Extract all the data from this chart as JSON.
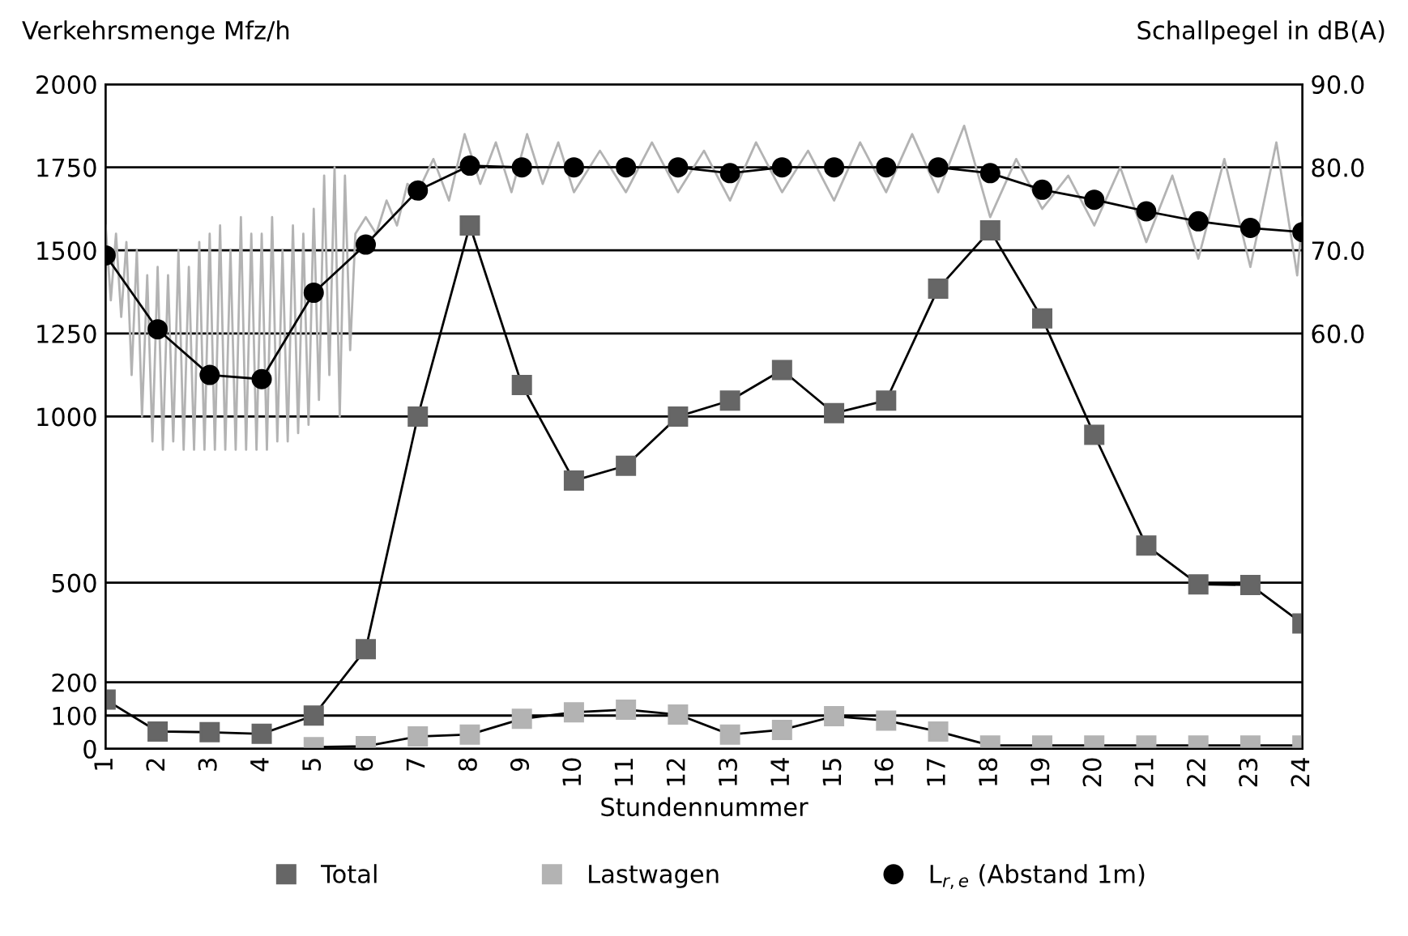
{
  "chart_data": {
    "type": "line",
    "x": [
      1,
      2,
      3,
      4,
      5,
      6,
      7,
      8,
      9,
      10,
      11,
      12,
      13,
      14,
      15,
      16,
      17,
      18,
      19,
      20,
      21,
      22,
      23,
      24
    ],
    "xticks": [
      1,
      2,
      3,
      4,
      5,
      6,
      7,
      8,
      9,
      10,
      11,
      12,
      13,
      14,
      15,
      16,
      17,
      18,
      19,
      20,
      21,
      22,
      23,
      24
    ],
    "xlim": [
      1,
      24
    ],
    "xlabel": "Stundennummer",
    "ylabel": "Verkehrsmenge Mfz/h",
    "y2label": "Schallpegel in dB(A)",
    "ylim": [
      0,
      2000
    ],
    "yticks": [
      0,
      100,
      200,
      500,
      1000,
      1250,
      1500,
      1750,
      2000
    ],
    "y2lim": [
      10,
      90
    ],
    "y2ticks": [
      {
        "value": 60,
        "label": "60.0"
      },
      {
        "value": 70,
        "label": "70.0"
      },
      {
        "value": 80,
        "label": "80.0"
      },
      {
        "value": 90,
        "label": "90.0"
      }
    ],
    "grid": "y",
    "legend": "bottom",
    "series": [
      {
        "axis": "y2",
        "color": "#b3b3b3",
        "marker": "none",
        "x": [
          1,
          1.1,
          1.2,
          1.3,
          1.4,
          1.5,
          1.6,
          1.7,
          1.8,
          1.9,
          2.0,
          2.1,
          2.2,
          2.3,
          2.4,
          2.5,
          2.6,
          2.7,
          2.8,
          2.9,
          3.0,
          3.1,
          3.2,
          3.3,
          3.4,
          3.5,
          3.6,
          3.7,
          3.8,
          3.9,
          4.0,
          4.1,
          4.2,
          4.3,
          4.4,
          4.5,
          4.6,
          4.7,
          4.8,
          4.9,
          5.0,
          5.1,
          5.2,
          5.3,
          5.4,
          5.5,
          5.6,
          5.7,
          5.8,
          6.0,
          6.2,
          6.4,
          6.6,
          6.8,
          7.0,
          7.3,
          7.6,
          7.9,
          8.2,
          8.5,
          8.8,
          9.1,
          9.4,
          9.7,
          10.0,
          10.5,
          11.0,
          11.5,
          12.0,
          12.5,
          13.0,
          13.5,
          14.0,
          14.5,
          15.0,
          15.5,
          16.0,
          16.5,
          17.0,
          17.5,
          18.0,
          18.5,
          19.0,
          19.5,
          20.0,
          20.5,
          21.0,
          21.5,
          22.0,
          22.5,
          23.0,
          23.5,
          23.9,
          24.0
        ],
        "values": [
          73,
          64,
          72,
          62,
          71,
          55,
          70,
          50,
          67,
          47,
          68,
          46,
          67,
          47,
          70,
          46,
          68,
          46,
          71,
          46,
          72,
          46,
          73,
          46,
          70,
          46,
          74,
          46,
          72,
          46,
          72,
          46,
          74,
          47,
          70,
          47,
          73,
          48,
          72,
          49,
          75,
          52,
          79,
          55,
          80,
          50,
          79,
          58,
          72,
          74,
          72,
          76,
          73,
          78,
          77,
          81,
          76,
          84,
          78,
          83,
          77,
          84,
          78,
          83,
          77,
          82,
          77,
          83,
          77,
          82,
          76,
          83,
          77,
          82,
          76,
          83,
          77,
          84,
          77,
          85,
          74,
          81,
          75,
          79,
          73,
          80,
          71,
          79,
          69,
          81,
          68,
          83,
          67,
          74
        ]
      },
      {
        "name": "Total",
        "color": "#666666",
        "marker": "square",
        "values": [
          148,
          52,
          50,
          45,
          100,
          300,
          1000,
          1575,
          1095,
          807,
          852,
          1000,
          1048,
          1140,
          1010,
          1048,
          1385,
          1560,
          1295,
          945,
          612,
          495,
          493,
          377
        ]
      },
      {
        "name": "Lastwagen",
        "color": "#b3b3b3",
        "marker": "square",
        "values": [
          null,
          null,
          null,
          null,
          5,
          8,
          37,
          43,
          90,
          110,
          118,
          103,
          43,
          57,
          98,
          85,
          52,
          10,
          10,
          10,
          10,
          10,
          10,
          10
        ]
      },
      {
        "name": "L$_{r,e}$ (Abstand 1m)",
        "axis": "y2",
        "color": "#000000",
        "marker": "circle",
        "values": [
          69.4,
          60.5,
          55,
          54.5,
          64.9,
          70.7,
          77.2,
          80.2,
          80,
          80,
          80,
          80,
          79.3,
          80,
          80,
          80,
          80,
          79.3,
          77.3,
          76.1,
          74.7,
          73.5,
          72.7,
          72.2
        ]
      }
    ]
  }
}
